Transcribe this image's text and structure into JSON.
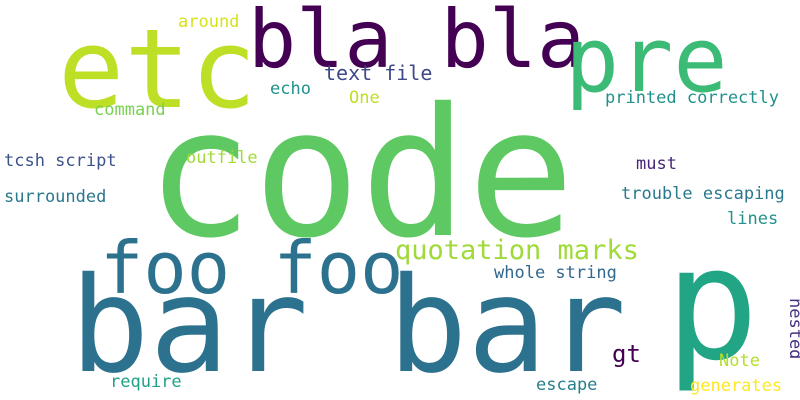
{
  "words": [
    {
      "text": "code",
      "color": "#5ec962"
    },
    {
      "text": "bar bar",
      "color": "#2c728e"
    },
    {
      "text": "p",
      "color": "#21a585"
    },
    {
      "text": "foo foo",
      "color": "#2c728e"
    },
    {
      "text": "etc",
      "color": "#bddf26"
    },
    {
      "text": "bla bla",
      "color": "#440154"
    },
    {
      "text": "pre",
      "color": "#3bbb75"
    },
    {
      "text": "quotation marks",
      "color": "#a0da39"
    },
    {
      "text": "text file",
      "color": "#3e4989"
    },
    {
      "text": "printed correctly",
      "color": "#21918c"
    },
    {
      "text": "around",
      "color": "#d8e219"
    },
    {
      "text": "echo",
      "color": "#21918c"
    },
    {
      "text": "One",
      "color": "#bddf26"
    },
    {
      "text": "command",
      "color": "#7ad151"
    },
    {
      "text": "tcsh script",
      "color": "#3b528b"
    },
    {
      "text": "outfile",
      "color": "#a0da39"
    },
    {
      "text": "must",
      "color": "#482878"
    },
    {
      "text": "trouble escaping",
      "color": "#2a788e"
    },
    {
      "text": "surrounded",
      "color": "#2a788e"
    },
    {
      "text": "lines",
      "color": "#21918c"
    },
    {
      "text": "whole string",
      "color": "#31688e"
    },
    {
      "text": "gt",
      "color": "#440154"
    },
    {
      "text": "Note",
      "color": "#b5de2b"
    },
    {
      "text": "nested",
      "color": "#46327e"
    },
    {
      "text": "require",
      "color": "#1fa188"
    },
    {
      "text": "escape",
      "color": "#277f8e"
    },
    {
      "text": "generates",
      "color": "#fde725"
    }
  ]
}
